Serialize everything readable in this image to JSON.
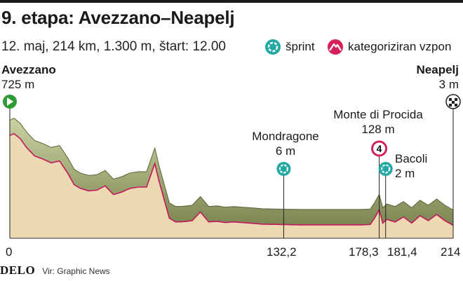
{
  "title": "9. etapa: Avezzano–Neapelj",
  "subtitle": "12. maj, 214 km, 1.300 m, štart: 12.00",
  "legend": {
    "sprint_label": "šprint",
    "climb_label": "kategoriziran vzpon",
    "sprint_icon": "sprint-icon",
    "climb_icon": "mountain-icon",
    "sprint_color": "#23a8a4",
    "climb_color": "#d6205a"
  },
  "start": {
    "name": "Avezzano",
    "elevation": "725 m",
    "km": "0"
  },
  "finish": {
    "name": "Neapelj",
    "elevation": "3 m",
    "km": "214"
  },
  "points": [
    {
      "name": "Mondragone",
      "elevation": "6 m",
      "km": "132,2",
      "km_value": 132.2,
      "type": "sprint"
    },
    {
      "name": "Monte di Procida",
      "elevation": "128 m",
      "km": "178,3",
      "km_value": 178.3,
      "type": "climb",
      "category": "4"
    },
    {
      "name": "Bacoli",
      "elevation": "2 m",
      "km": "181,4",
      "km_value": 181.4,
      "type": "sprint"
    }
  ],
  "footer": {
    "logo": "DELO",
    "source": "Vir: Graphic News"
  },
  "chart_data": {
    "type": "area",
    "x_label": "km",
    "y_label": "m",
    "x_range": [
      0,
      214
    ],
    "y_range": [
      0,
      800
    ],
    "series": [
      {
        "x": [
          0,
          2,
          5,
          8,
          12,
          16,
          20,
          24,
          28,
          31,
          34,
          38,
          42,
          46,
          50,
          54,
          58,
          62,
          66,
          70,
          72,
          74,
          77,
          80,
          84,
          88,
          92,
          96,
          100,
          104,
          108,
          112,
          116,
          122,
          128,
          134,
          140,
          146,
          152,
          158,
          164,
          170,
          174,
          176,
          178.3,
          180,
          182,
          186,
          190,
          194,
          198,
          202,
          206,
          210,
          214
        ],
        "y": [
          725,
          740,
          700,
          630,
          560,
          535,
          505,
          520,
          420,
          330,
          300,
          280,
          285,
          320,
          250,
          270,
          300,
          310,
          310,
          500,
          360,
          240,
          60,
          30,
          32,
          40,
          110,
          30,
          35,
          25,
          30,
          25,
          20,
          12,
          10,
          8,
          6,
          6,
          6,
          6,
          6,
          6,
          10,
          60,
          128,
          20,
          50,
          30,
          70,
          20,
          80,
          40,
          90,
          40,
          3
        ]
      }
    ],
    "markers": [
      {
        "km": 132.2,
        "type": "sprint"
      },
      {
        "km": 178.3,
        "type": "climb",
        "category": "4"
      },
      {
        "km": 181.4,
        "type": "sprint"
      }
    ]
  }
}
